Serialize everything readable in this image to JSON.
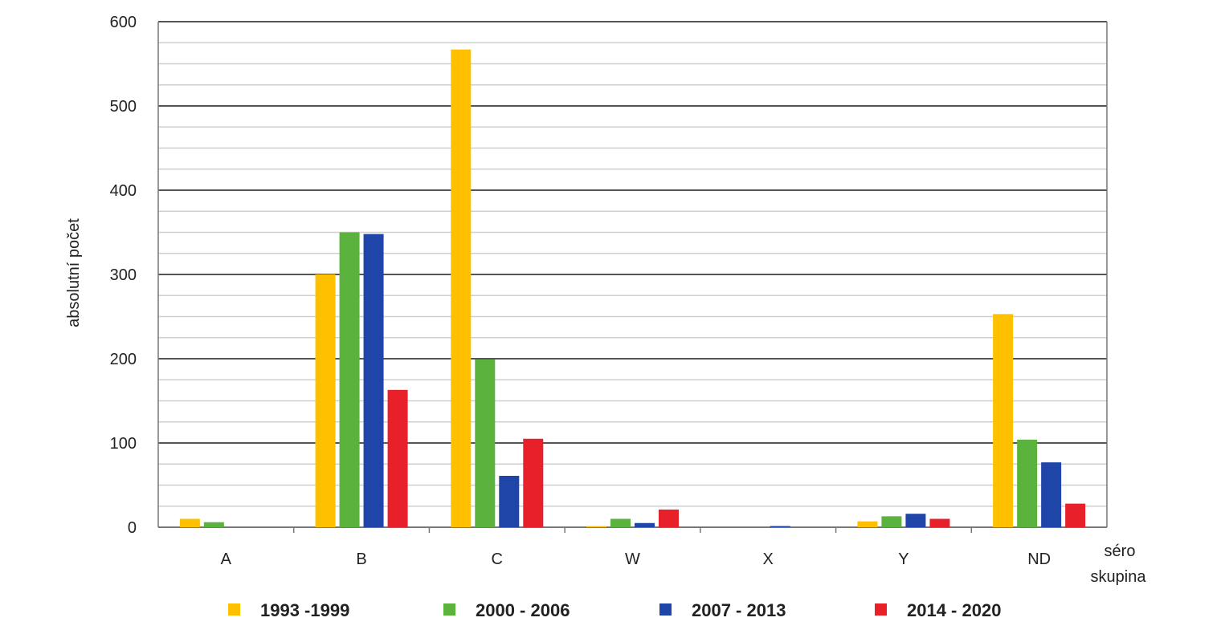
{
  "chart_data": {
    "type": "bar",
    "categories": [
      "A",
      "B",
      "C",
      "W",
      "X",
      "Y",
      "ND"
    ],
    "series": [
      {
        "name": "1993 -1999",
        "color": "#FFC000",
        "values": [
          10,
          300,
          567,
          1,
          0,
          7,
          253
        ]
      },
      {
        "name": "2000 - 2006",
        "color": "#5BB33E",
        "values": [
          6,
          350,
          199,
          10,
          0,
          13,
          104
        ]
      },
      {
        "name": "2007 - 2013",
        "color": "#1F45A8",
        "values": [
          0,
          348,
          61,
          5,
          1,
          16,
          77
        ]
      },
      {
        "name": "2014 - 2020",
        "color": "#E8202A",
        "values": [
          0,
          163,
          105,
          21,
          0,
          10,
          28
        ]
      }
    ],
    "yticks": [
      "0",
      "100",
      "200",
      "300",
      "400",
      "500",
      "600"
    ],
    "ylim": [
      0,
      600
    ],
    "ylabel": "absolutní počet",
    "xlabel_line1": "séro",
    "xlabel_line2": "skupina",
    "grid": true,
    "legend_position": "bottom"
  }
}
